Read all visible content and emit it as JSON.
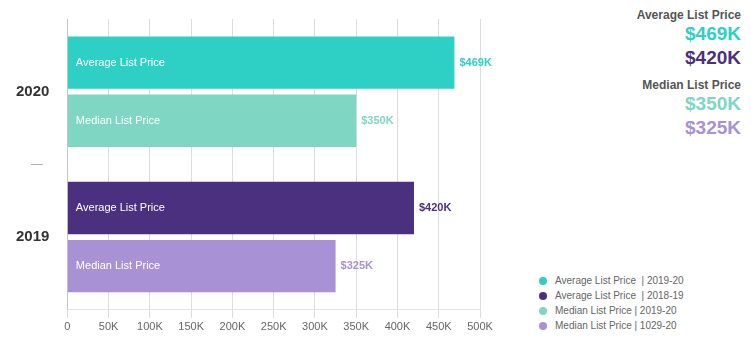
{
  "chart_data": {
    "type": "bar",
    "orientation": "horizontal",
    "categories": [
      "2020",
      "2019"
    ],
    "series": [
      {
        "name": "Average List Price  | 2019-20",
        "bar_label": "Average List Price",
        "color": "#2ecfc4",
        "values": [
          469000,
          null
        ],
        "value_labels": [
          "$469K",
          null
        ]
      },
      {
        "name": "Average List Price  | 2018-19",
        "bar_label": "Average List Price",
        "color": "#4b3080",
        "values": [
          null,
          420000
        ],
        "value_labels": [
          null,
          "$420K"
        ]
      },
      {
        "name": "Median List Price | 2019-20",
        "bar_label": "Median List Price",
        "color": "#7fd6c2",
        "values": [
          350000,
          null
        ],
        "value_labels": [
          "$350K",
          null
        ]
      },
      {
        "name": "Median List Price | 1029-20",
        "bar_label": "Median List Price",
        "color": "#a891d4",
        "values": [
          null,
          325000
        ],
        "value_labels": [
          null,
          "$325K"
        ]
      }
    ],
    "xlim": [
      0,
      500000
    ],
    "xticks": [
      0,
      {
        "value": 50000,
        "label": "50K"
      },
      {
        "value": 100000,
        "label": "100K"
      },
      {
        "value": 150000,
        "label": "150K"
      },
      {
        "value": 200000,
        "label": "200K"
      },
      {
        "value": 250000,
        "label": "250K"
      },
      {
        "value": 300000,
        "label": "300K"
      },
      {
        "value": 350000,
        "label": "350K"
      },
      {
        "value": 400000,
        "label": "400K"
      },
      {
        "value": 450000,
        "label": "450K"
      },
      {
        "value": 500000,
        "label": "500K"
      }
    ],
    "grid": true,
    "data_labels": true,
    "legend": "right",
    "separator": "—",
    "annotations": [
      {
        "title": "Average List Price",
        "title_color": "#555555",
        "values": [
          {
            "text": "$469K",
            "color": "#2ecfc4"
          },
          {
            "text": "$420K",
            "color": "#4b3080"
          }
        ]
      },
      {
        "title": "Median List Price",
        "title_color": "#555555",
        "values": [
          {
            "text": "$350K",
            "color": "#7fd6c2"
          },
          {
            "text": "$325K",
            "color": "#a891d4"
          }
        ]
      }
    ]
  }
}
